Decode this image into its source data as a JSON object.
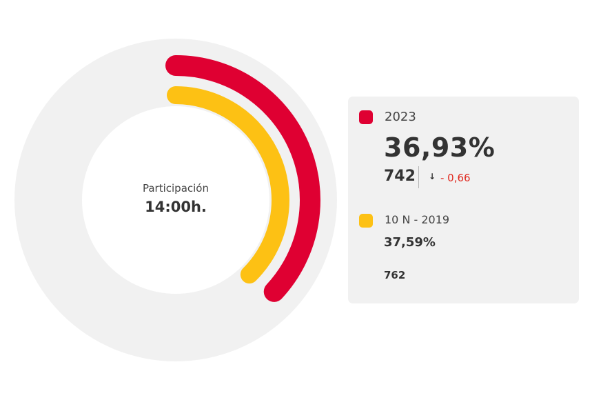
{
  "center": {
    "caption": "Participación",
    "time": "14:00h."
  },
  "panel": {
    "current": {
      "label": "2023",
      "percent": "36,93%",
      "votes": "742",
      "arrow": "↓",
      "diff": "- 0,66"
    },
    "previous": {
      "label": "10 N - 2019",
      "percent": "37,59%",
      "votes": "762"
    }
  },
  "chart_data": {
    "type": "radial-bar",
    "max": 100,
    "series": [
      {
        "name": "2023",
        "value": 36.93,
        "color": "#df0032"
      },
      {
        "name": "10 N - 2019",
        "value": 37.59,
        "color": "#fdc114"
      }
    ],
    "track_color": "#f1f1f1",
    "hole_color": "#ffffff"
  }
}
